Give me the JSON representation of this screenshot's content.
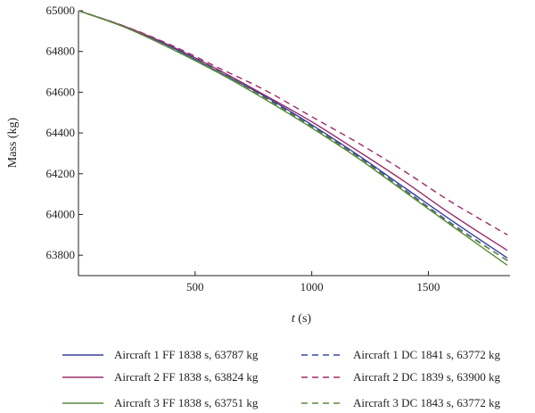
{
  "chart_data": {
    "type": "line",
    "title": "",
    "xlabel_italic": "t",
    "xlabel_unit": " (s)",
    "ylabel": "Mass (kg)",
    "xlim": [
      0,
      1850
    ],
    "ylim": [
      63700,
      65000
    ],
    "x_ticks": [
      500,
      1000,
      1500
    ],
    "x_tick_labels": [
      "500",
      "1000",
      "1500"
    ],
    "y_ticks": [
      63800,
      64000,
      64200,
      64400,
      64600,
      64800,
      65000
    ],
    "y_tick_labels": [
      "63800",
      "64000",
      "64200",
      "64400",
      "64600",
      "64800",
      "65000"
    ],
    "grid": false,
    "legend_position": "bottom",
    "series": [
      {
        "name": "Aircraft 1 FF 1838 s, 63787 kg",
        "color": "#3a3f9a",
        "dash": "solid",
        "x": [
          0,
          200,
          400,
          600,
          800,
          1000,
          1200,
          1400,
          1600,
          1838
        ],
        "y": [
          65000,
          64920,
          64820,
          64700,
          64580,
          64440,
          64290,
          64130,
          63970,
          63787
        ]
      },
      {
        "name": "Aircraft 2 FF 1838 s, 63824 kg",
        "color": "#9a2d6a",
        "dash": "solid",
        "x": [
          0,
          200,
          400,
          600,
          800,
          1000,
          1200,
          1400,
          1600,
          1838
        ],
        "y": [
          65000,
          64922,
          64825,
          64710,
          64585,
          64455,
          64310,
          64160,
          64000,
          63824
        ]
      },
      {
        "name": "Aircraft 3 FF 1838 s, 63751 kg",
        "color": "#5a8a3a",
        "dash": "solid",
        "x": [
          0,
          200,
          400,
          600,
          800,
          1000,
          1200,
          1400,
          1600,
          1838
        ],
        "y": [
          65000,
          64918,
          64812,
          64695,
          64565,
          64425,
          64275,
          64110,
          63945,
          63751
        ]
      },
      {
        "name": "Aircraft 1 DC 1841 s, 63772 kg",
        "color": "#3a4aa8",
        "dash": "dashed",
        "x": [
          0,
          200,
          400,
          600,
          800,
          1000,
          1200,
          1400,
          1600,
          1841
        ],
        "y": [
          65000,
          64921,
          64822,
          64705,
          64575,
          64435,
          64285,
          64120,
          63955,
          63772
        ]
      },
      {
        "name": "Aircraft  2 DC 1839 s, 63900 kg",
        "color": "#9a2d6a",
        "dash": "dashed",
        "x": [
          0,
          200,
          400,
          600,
          800,
          1000,
          1200,
          1400,
          1600,
          1839
        ],
        "y": [
          65000,
          64923,
          64830,
          64720,
          64610,
          64480,
          64350,
          64210,
          64060,
          63900
        ]
      },
      {
        "name": "Aircraft  3 DC 1843 s, 63772 kg",
        "color": "#5a8a3a",
        "dash": "dashed",
        "x": [
          0,
          200,
          400,
          600,
          800,
          1000,
          1200,
          1400,
          1600,
          1843
        ],
        "y": [
          65000,
          64919,
          64815,
          64700,
          64570,
          64430,
          64280,
          64115,
          63950,
          63772
        ]
      }
    ]
  }
}
